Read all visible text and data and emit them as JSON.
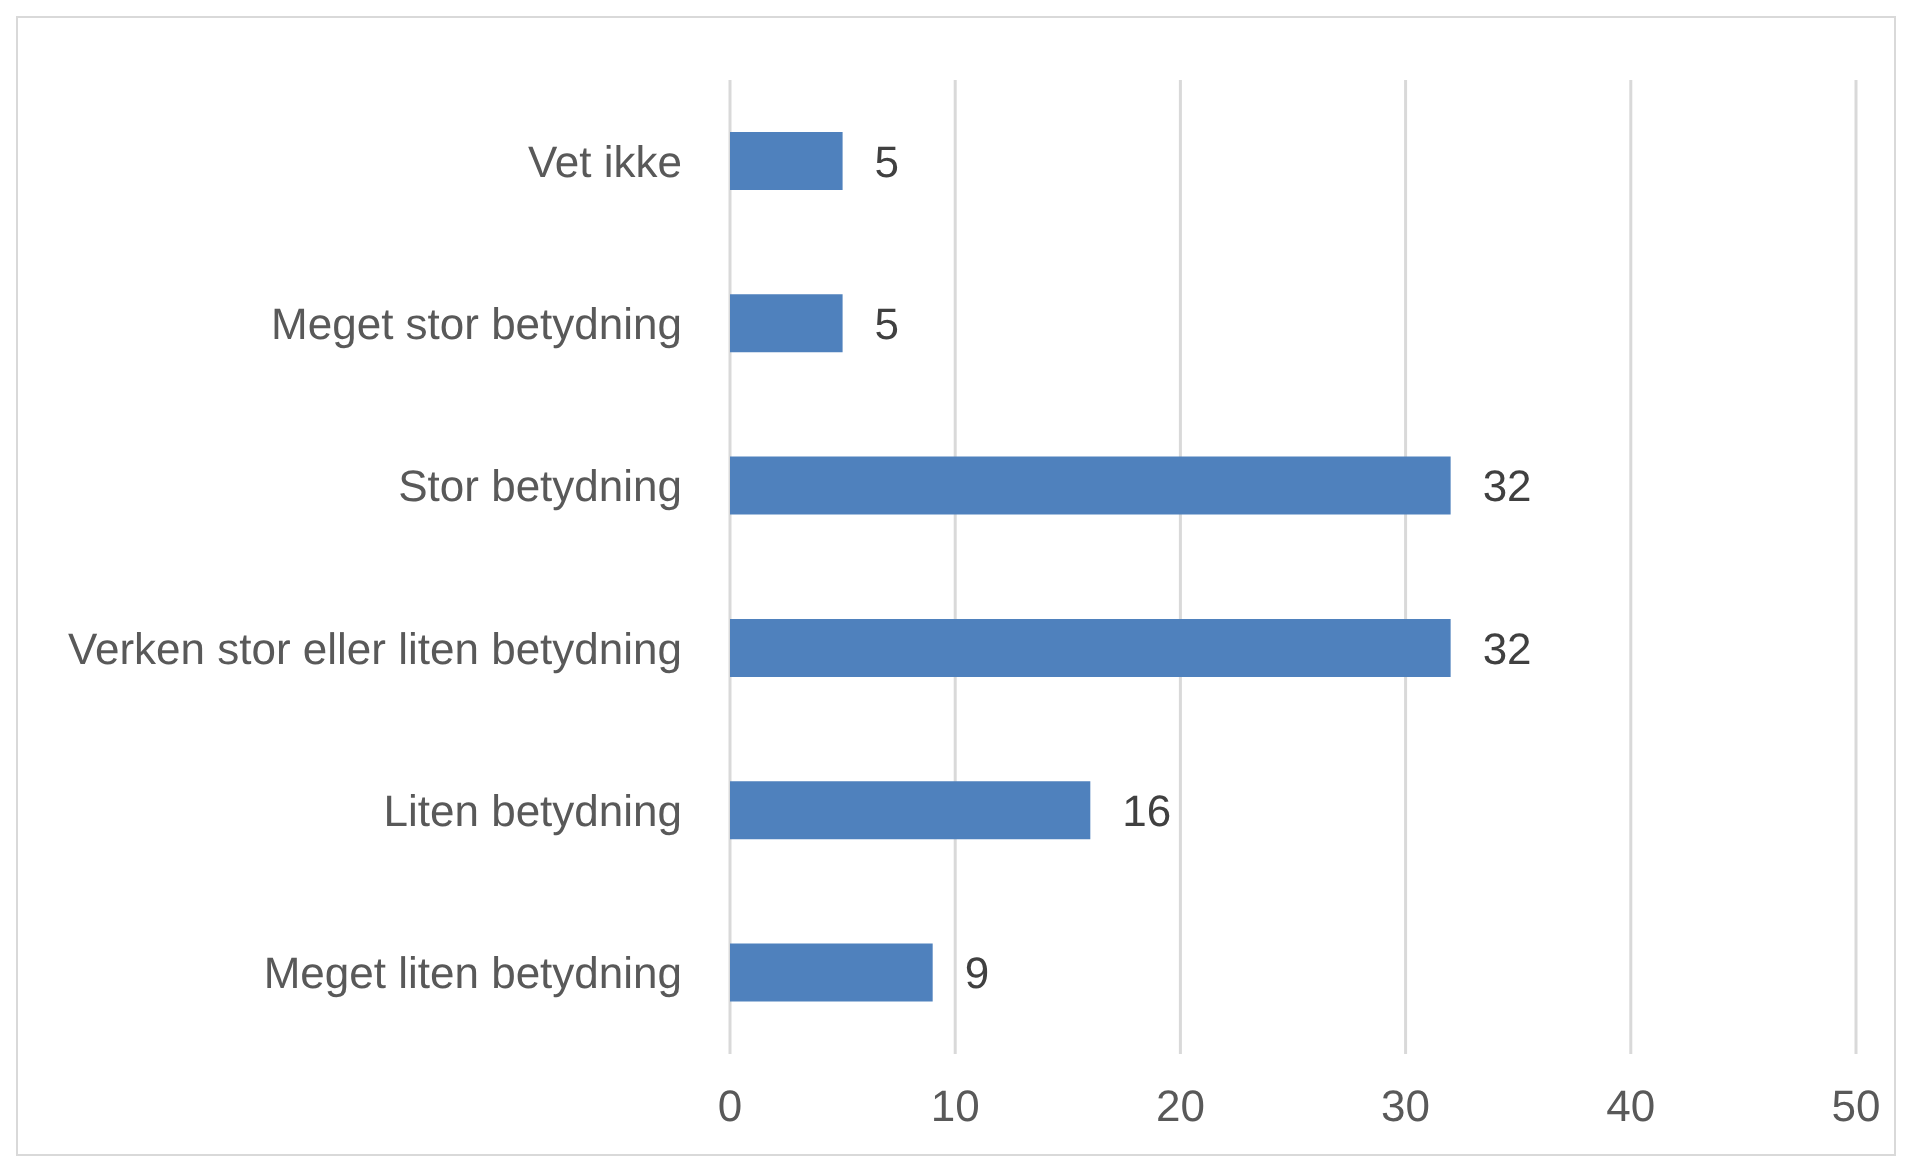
{
  "chart_data": {
    "type": "bar",
    "orientation": "horizontal",
    "categories": [
      "Vet ikke",
      "Meget stor betydning",
      "Stor betydning",
      "Verken stor eller liten betydning",
      "Liten betydning",
      "Meget liten betydning"
    ],
    "values": [
      5,
      5,
      32,
      32,
      16,
      9
    ],
    "color": "#4f81bd",
    "xlim": [
      0,
      50
    ],
    "xticks": [
      0,
      10,
      20,
      30,
      40,
      50
    ],
    "grid": "x",
    "data_labels": true
  }
}
